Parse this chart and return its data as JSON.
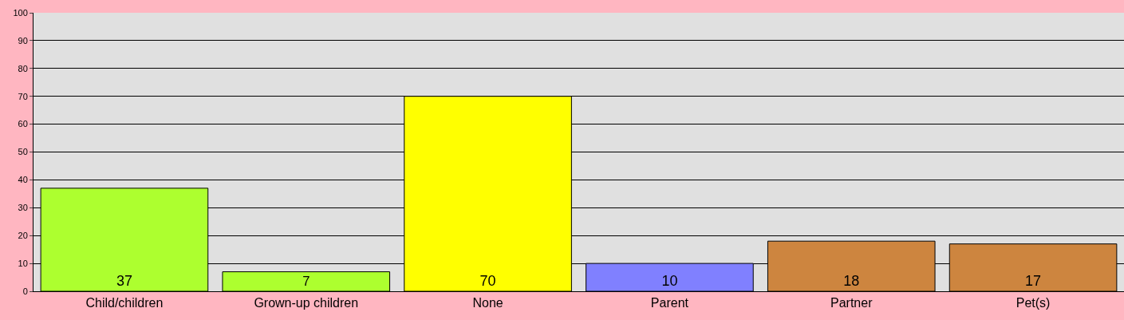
{
  "chart_data": {
    "type": "bar",
    "categories": [
      "Child/children",
      "Grown-up children",
      "None",
      "Parent",
      "Partner",
      "Pet(s)"
    ],
    "values": [
      37,
      7,
      70,
      10,
      18,
      17
    ],
    "colors": [
      "#adff2f",
      "#adff2f",
      "#ffff00",
      "#8080ff",
      "#cd853f",
      "#cd853f"
    ],
    "ylim": [
      0,
      100
    ],
    "yticks": [
      0,
      10,
      20,
      30,
      40,
      50,
      60,
      70,
      80,
      90,
      100
    ],
    "grid": "y",
    "data_labels": true
  }
}
